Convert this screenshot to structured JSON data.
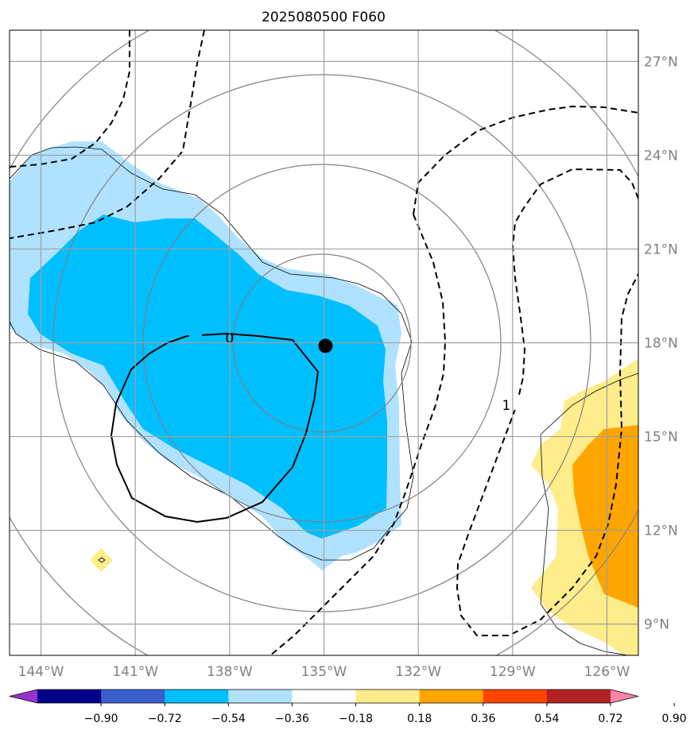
{
  "title": "2025080500 F060",
  "map": {
    "lon_range": [
      -145,
      -125
    ],
    "lat_range": [
      8,
      28
    ],
    "lon_ticks": [
      {
        "value": -144,
        "label": "144°W"
      },
      {
        "value": -141,
        "label": "141°W"
      },
      {
        "value": -138,
        "label": "138°W"
      },
      {
        "value": -135,
        "label": "135°W"
      },
      {
        "value": -132,
        "label": "132°W"
      },
      {
        "value": -129,
        "label": "129°W"
      },
      {
        "value": -126,
        "label": "126°W"
      }
    ],
    "lat_ticks": [
      {
        "value": 9,
        "label": "9°N"
      },
      {
        "value": 12,
        "label": "12°N"
      },
      {
        "value": 15,
        "label": "15°N"
      },
      {
        "value": 18,
        "label": "18°N"
      },
      {
        "value": 21,
        "label": "21°N"
      },
      {
        "value": 24,
        "label": "24°N"
      },
      {
        "value": 27,
        "label": "27°N"
      }
    ],
    "center_marker": {
      "lon": -134.95,
      "lat": 17.9
    },
    "contour_labels": [
      {
        "text": "0",
        "lon": -138.0,
        "lat": 18.15
      },
      {
        "text": "1",
        "lon": -129.2,
        "lat": 16.0
      }
    ],
    "range_rings_deg": [
      2.8,
      5.6,
      8.4,
      11.2
    ]
  },
  "colorbar": {
    "colors": [
      "#9932cc",
      "#00008b",
      "#3a5fcd",
      "#00bfff",
      "#b0e2ff",
      "#ffffff",
      "#ffec8b",
      "#ffa500",
      "#ff4500",
      "#b22222",
      "#ff82ab"
    ],
    "tick_labels": [
      "−0.90",
      "−0.72",
      "−0.54",
      "−0.36",
      "−0.18",
      "0.18",
      "0.36",
      "0.54",
      "0.72",
      "0.90"
    ]
  }
}
